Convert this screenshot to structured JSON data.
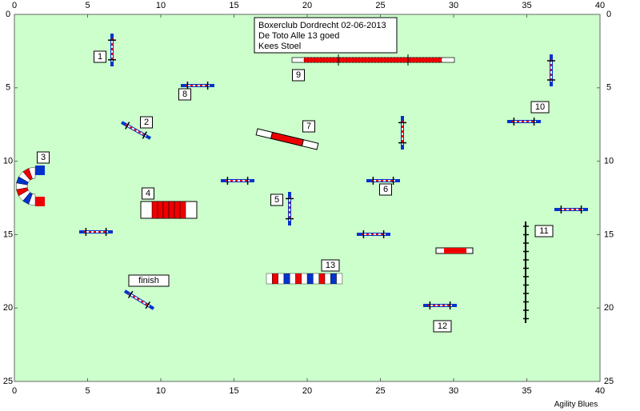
{
  "header": {
    "lines": [
      "Boxerclub Dordrecht 02-06-2013",
      "De Toto Alle 13 goed",
      "Kees Stoel"
    ]
  },
  "axes": {
    "x_ticks": [
      0,
      5,
      10,
      15,
      20,
      25,
      30,
      35,
      40
    ],
    "y_ticks": [
      0,
      5,
      10,
      15,
      20,
      25
    ]
  },
  "obstacles": {
    "labels": [
      "1",
      "2",
      "3",
      "4",
      "5",
      "6",
      "7",
      "8",
      "9",
      "10",
      "11",
      "12",
      "13"
    ],
    "finish": "finish"
  },
  "footer": "Agility Blues"
}
